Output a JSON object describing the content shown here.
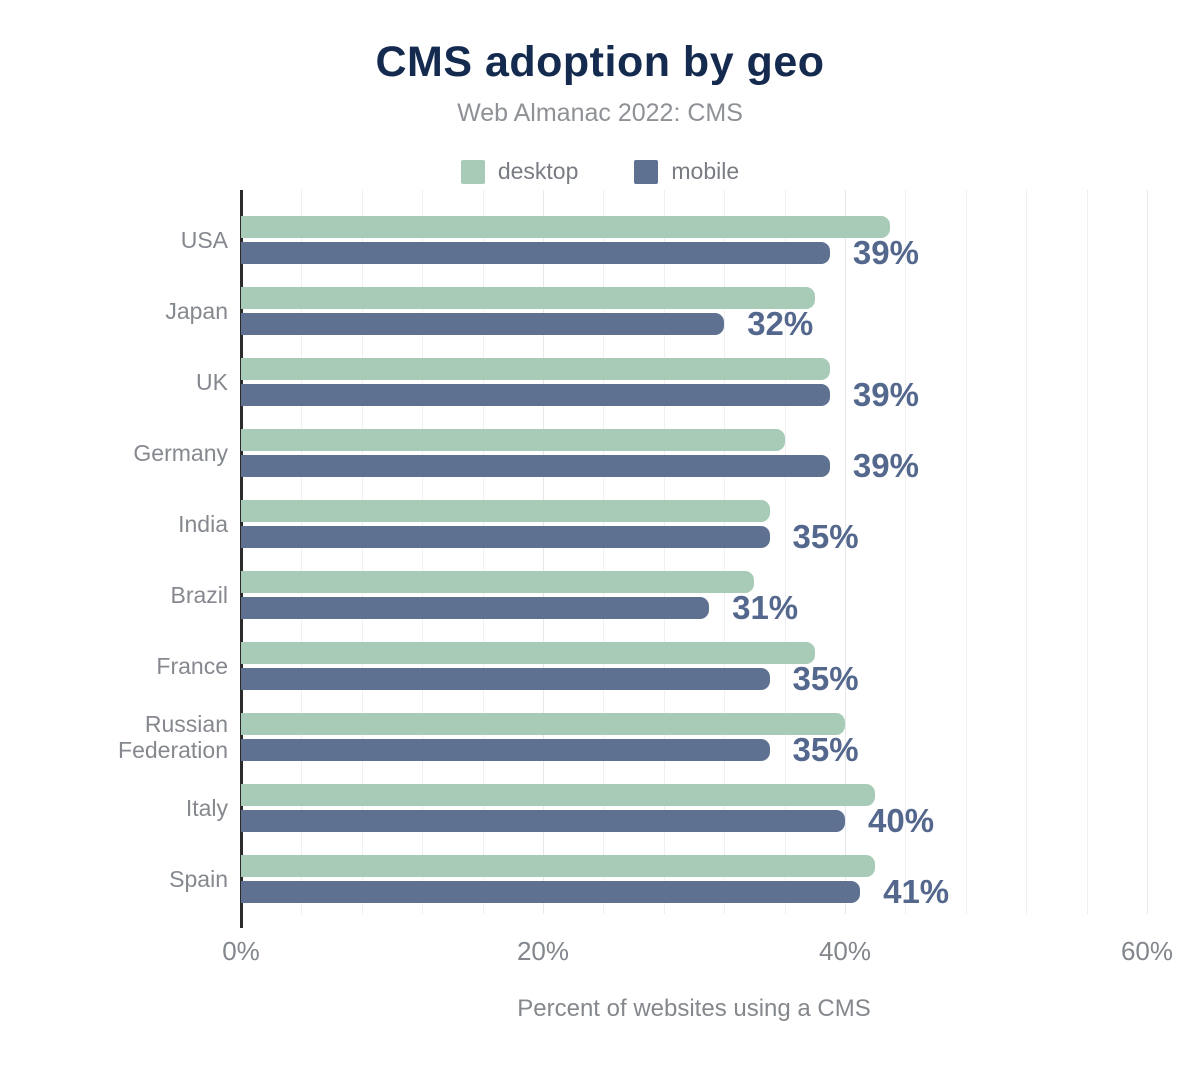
{
  "title": "CMS adoption by geo",
  "subtitle": "Web Almanac 2022: CMS",
  "legend": [
    {
      "label": "desktop",
      "color": "#a7cbb6"
    },
    {
      "label": "mobile",
      "color": "#5e7190"
    }
  ],
  "colors": {
    "title": "#142a4e",
    "subtitle_gray": "#8e9196",
    "value_label": "#54678c",
    "axis_line": "#2b2b2b",
    "gridline": "#eef0f2"
  },
  "chart_data": {
    "type": "bar",
    "orientation": "horizontal",
    "title": "CMS adoption by geo",
    "subtitle": "Web Almanac 2022: CMS",
    "xlabel": "Percent of websites using a CMS",
    "ylabel": "",
    "categories": [
      "USA",
      "Japan",
      "UK",
      "Germany",
      "India",
      "Brazil",
      "France",
      "Russian\nFederation",
      "Italy",
      "Spain"
    ],
    "series": [
      {
        "name": "desktop",
        "color": "#a7cbb6",
        "values": [
          43,
          38,
          39,
          36,
          35,
          34,
          38,
          40,
          42,
          42
        ]
      },
      {
        "name": "mobile",
        "color": "#5e7190",
        "values": [
          39,
          32,
          39,
          39,
          35,
          31,
          35,
          35,
          40,
          41
        ]
      }
    ],
    "bar_labels": [
      "39%",
      "32%",
      "39%",
      "39%",
      "35%",
      "31%",
      "35%",
      "35%",
      "40%",
      "41%"
    ],
    "bar_label_series": "mobile",
    "x_tick_values": [
      0,
      20,
      40,
      60
    ],
    "x_ticks": [
      "0%",
      "20%",
      "40%",
      "60%"
    ],
    "xlim": [
      0,
      62.6
    ],
    "grid_step": 4,
    "grid_on": true,
    "legend_position": "top"
  }
}
